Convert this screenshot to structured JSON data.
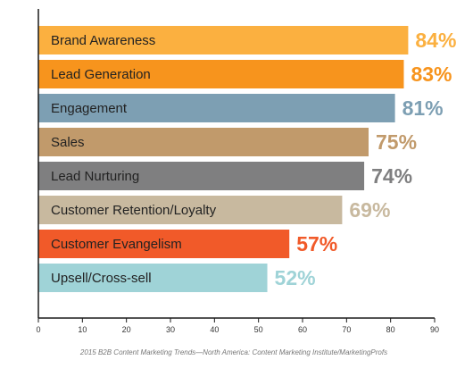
{
  "chart_data": {
    "type": "bar",
    "orientation": "horizontal",
    "categories": [
      "Brand Awareness",
      "Lead Generation",
      "Engagement",
      "Sales",
      "Lead Nurturing",
      "Customer Retention/Loyalty",
      "Customer Evangelism",
      "Upsell/Cross-sell"
    ],
    "values": [
      84,
      83,
      81,
      75,
      74,
      69,
      57,
      52
    ],
    "value_labels": [
      "84%",
      "83%",
      "81%",
      "75%",
      "74%",
      "69%",
      "57%",
      "52%"
    ],
    "colors": [
      "#fbb040",
      "#f7941d",
      "#7d9fb3",
      "#c19a6b",
      "#7f7f80",
      "#c8b99f",
      "#f15a29",
      "#9fd3d7"
    ],
    "label_colors": [
      "#fbb040",
      "#f7941d",
      "#7d9fb3",
      "#c19a6b",
      "#7f7f80",
      "#c8b99f",
      "#f15a29",
      "#9fd3d7"
    ],
    "xlim": [
      0,
      90
    ],
    "x_ticks": [
      "0",
      "10",
      "20",
      "30",
      "40",
      "50",
      "60",
      "70",
      "80",
      "90"
    ],
    "title": "",
    "xlabel": "",
    "ylabel": "",
    "grid": false,
    "legend": "none",
    "source": "2015 B2B Content Marketing Trends—North America: Content Marketing Institute/MarketingProfs"
  }
}
